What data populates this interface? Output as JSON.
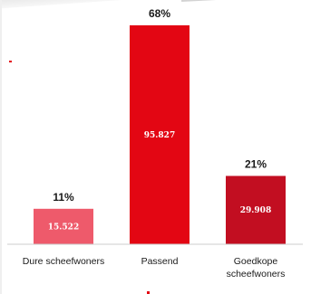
{
  "chart_data": {
    "type": "bar",
    "categories": [
      [
        "Dure scheefwoners"
      ],
      [
        "Passend"
      ],
      [
        "Goedkope",
        "scheefwoners"
      ]
    ],
    "values": [
      15522,
      95827,
      29908
    ],
    "value_labels": [
      "15.522",
      "95.827",
      "29.908"
    ],
    "percent_labels": [
      "11%",
      "68%",
      "21%"
    ],
    "bar_colors": [
      "#ee5a6b",
      "#e30613",
      "#c20e21"
    ],
    "axis_color": "#cccccc",
    "ylim": [
      0,
      95827
    ],
    "grid": false,
    "legend": "none"
  }
}
